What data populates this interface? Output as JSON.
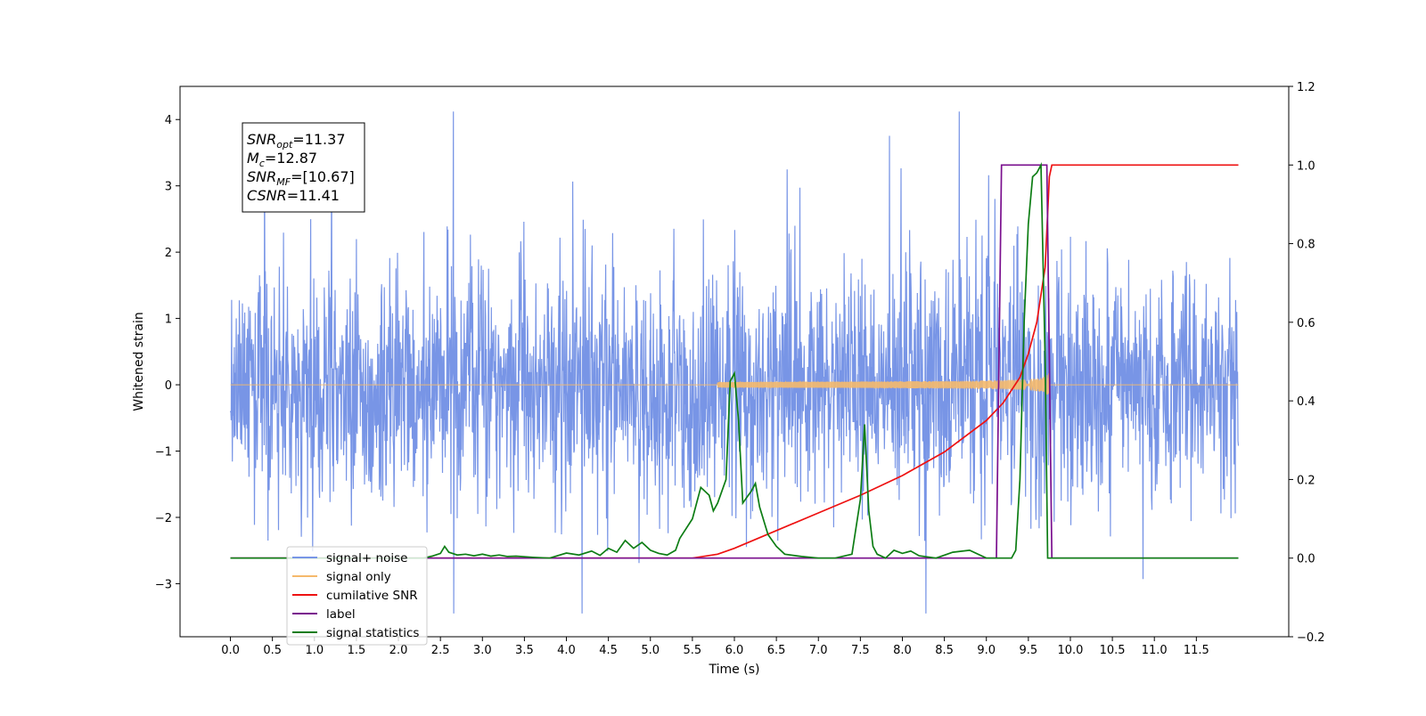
{
  "chart_data": {
    "type": "line",
    "xlabel": "Time (s)",
    "ylabel": "Whitened strain",
    "xlim": [
      -0.6,
      12.6
    ],
    "ylim": [
      -3.8,
      4.5
    ],
    "y2lim": [
      -0.2,
      1.2
    ],
    "x_ticks": [
      "0.0",
      "0.5",
      "1.0",
      "1.5",
      "2.0",
      "2.5",
      "3.0",
      "3.5",
      "4.0",
      "4.5",
      "5.0",
      "5.5",
      "6.0",
      "6.5",
      "7.0",
      "7.5",
      "8.0",
      "8.5",
      "9.0",
      "9.5",
      "10.0",
      "10.5",
      "11.0",
      "11.5"
    ],
    "y_ticks": [
      "4",
      "3",
      "2",
      "1",
      "0",
      "−1",
      "−2",
      "−3"
    ],
    "y2_ticks": [
      "1.2",
      "1.0",
      "0.8",
      "0.6",
      "0.4",
      "0.2",
      "0.0",
      "−0.2"
    ],
    "grid": false,
    "legend_position": "lower-left",
    "annotation": {
      "lines": [
        {
          "main": "SNR",
          "sub": "opt",
          "rest": "=11.37"
        },
        {
          "main": "M",
          "sub": "c",
          "rest": "=12.87"
        },
        {
          "main": "SNR",
          "sub": "MF",
          "rest": "=[10.67]"
        },
        {
          "main": "CSNR",
          "sub": "",
          "rest": "=11.41"
        }
      ]
    },
    "series": [
      {
        "name": "signal+ noise",
        "color": "#7895e6",
        "axis": "left",
        "kind": "noise",
        "x_range": [
          0.0,
          12.0
        ],
        "sigma": 0.85,
        "signal_window": [
          9.2,
          9.75
        ]
      },
      {
        "name": "signal only",
        "color": "#f5b96b",
        "axis": "left",
        "kind": "chirp",
        "x_range": [
          0.0,
          12.0
        ],
        "start": 5.8,
        "merger": 9.75,
        "peak_amplitude": 1.2
      },
      {
        "name": "cumilative SNR",
        "color": "#ee1111",
        "axis": "right",
        "x": [
          0.0,
          5.5,
          5.8,
          6.0,
          6.5,
          7.0,
          7.5,
          8.0,
          8.5,
          9.0,
          9.2,
          9.4,
          9.5,
          9.6,
          9.7,
          9.75,
          9.78,
          12.0
        ],
        "y": [
          0.0,
          0.0,
          0.01,
          0.025,
          0.07,
          0.115,
          0.16,
          0.21,
          0.27,
          0.35,
          0.395,
          0.46,
          0.52,
          0.6,
          0.74,
          0.97,
          1.0,
          1.0
        ]
      },
      {
        "name": "label",
        "color": "#7a0f8e",
        "axis": "right",
        "x": [
          0.0,
          9.12,
          9.18,
          9.72,
          9.78,
          12.0
        ],
        "y": [
          0.0,
          0.0,
          1.0,
          1.0,
          0.0,
          0.0
        ]
      },
      {
        "name": "signal statistics",
        "color": "#0d7d14",
        "axis": "right",
        "x": [
          0.0,
          2.3,
          2.4,
          2.5,
          2.55,
          2.6,
          2.7,
          2.8,
          2.9,
          3.0,
          3.1,
          3.2,
          3.3,
          3.4,
          3.6,
          3.8,
          4.0,
          4.15,
          4.3,
          4.4,
          4.5,
          4.6,
          4.7,
          4.8,
          4.9,
          5.0,
          5.1,
          5.2,
          5.3,
          5.35,
          5.5,
          5.6,
          5.7,
          5.75,
          5.8,
          5.9,
          5.95,
          6.0,
          6.05,
          6.1,
          6.2,
          6.25,
          6.3,
          6.4,
          6.5,
          6.6,
          6.8,
          7.0,
          7.2,
          7.4,
          7.5,
          7.55,
          7.6,
          7.65,
          7.7,
          7.8,
          7.9,
          8.0,
          8.1,
          8.2,
          8.4,
          8.6,
          8.8,
          9.0,
          9.3,
          9.35,
          9.4,
          9.45,
          9.5,
          9.55,
          9.6,
          9.65,
          9.7,
          9.73,
          9.8,
          12.0
        ],
        "y": [
          0.0,
          0.0,
          0.005,
          0.012,
          0.03,
          0.015,
          0.008,
          0.01,
          0.006,
          0.01,
          0.005,
          0.008,
          0.004,
          0.005,
          0.002,
          0.0,
          0.013,
          0.008,
          0.018,
          0.007,
          0.025,
          0.015,
          0.045,
          0.025,
          0.04,
          0.02,
          0.012,
          0.008,
          0.02,
          0.05,
          0.1,
          0.18,
          0.16,
          0.12,
          0.14,
          0.2,
          0.45,
          0.47,
          0.35,
          0.14,
          0.17,
          0.19,
          0.13,
          0.06,
          0.03,
          0.01,
          0.004,
          0.0,
          0.0,
          0.01,
          0.15,
          0.34,
          0.12,
          0.03,
          0.01,
          0.0,
          0.02,
          0.012,
          0.018,
          0.006,
          0.0,
          0.015,
          0.02,
          0.0,
          0.0,
          0.02,
          0.2,
          0.6,
          0.85,
          0.97,
          0.98,
          1.0,
          0.5,
          0.0,
          0.0,
          0.0
        ]
      }
    ]
  }
}
